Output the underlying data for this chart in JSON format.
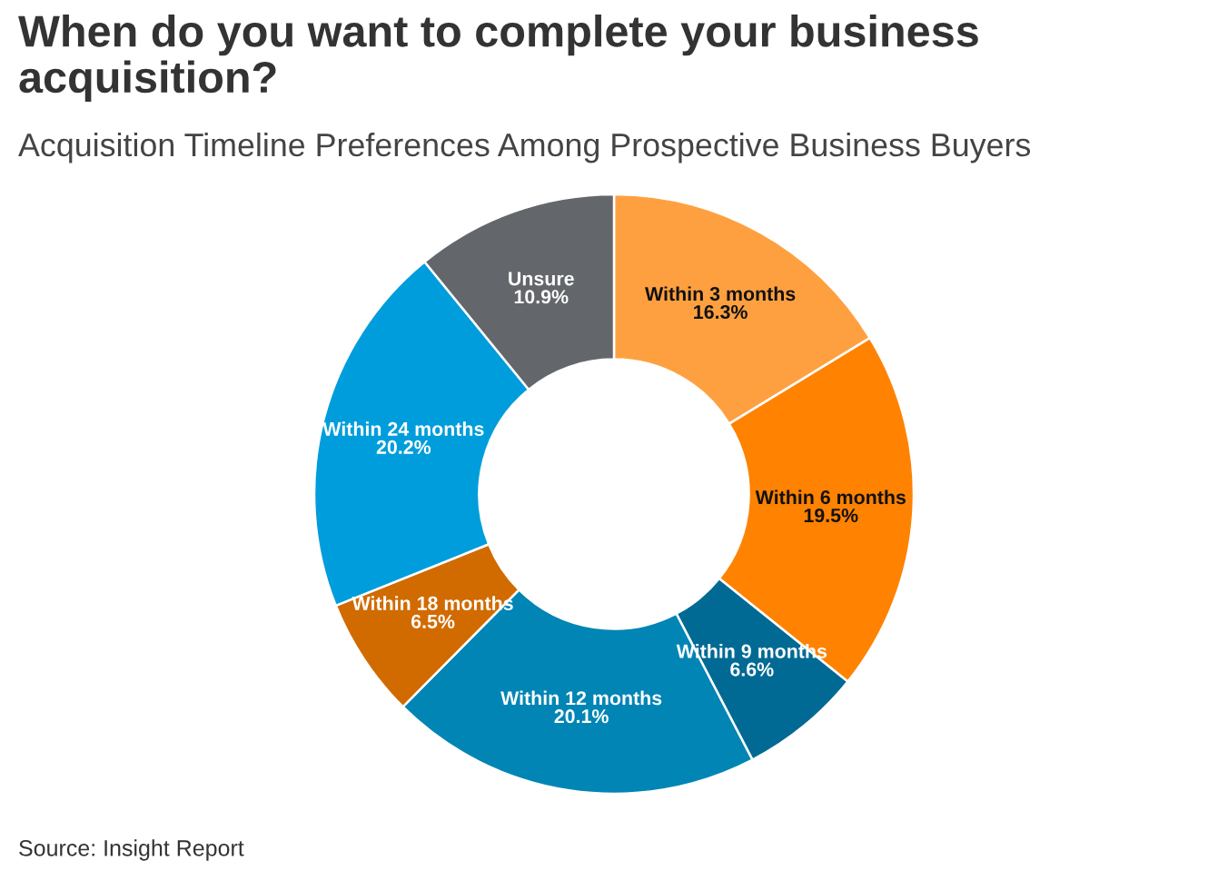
{
  "chart_data": {
    "type": "donut",
    "title": "When do you want to complete your business acquisition?",
    "subtitle": "Acquisition Timeline Preferences Among Prospective Business Buyers",
    "categories": [
      "Within 3 months",
      "Within 6 months",
      "Within 9 months",
      "Within 12 months",
      "Within 18 months",
      "Within 24 months",
      "Unsure"
    ],
    "values": [
      16.3,
      19.5,
      6.6,
      20.1,
      6.5,
      20.2,
      10.9
    ],
    "value_labels": [
      "16.3%",
      "19.5%",
      "6.6%",
      "20.1%",
      "6.5%",
      "20.2%",
      "10.9%"
    ],
    "colors": [
      "#ffa040",
      "#ff8200",
      "#006a94",
      "#0085b5",
      "#d16b00",
      "#009ddc",
      "#63666a"
    ],
    "annotations": [
      "Source: Insight Report"
    ]
  }
}
